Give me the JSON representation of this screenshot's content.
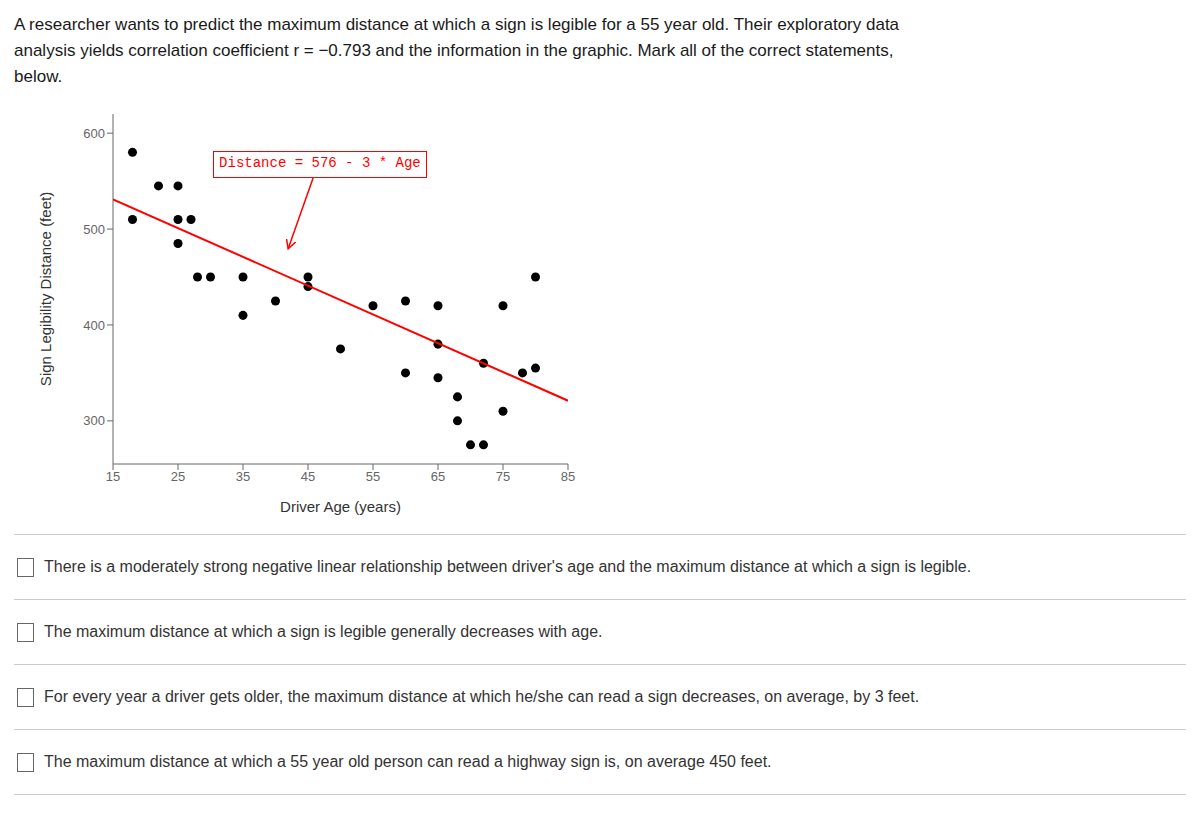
{
  "chart_data": {
    "type": "scatter",
    "title": [
      "A researcher wants to predict the maximum distance at which a sign is legible for a 55 year old.  Their exploratory data",
      "analysis yields correlation coefficient r = −0.793 and the information in the graphic.  Mark all of the correct statements,",
      "below."
    ],
    "x_label": "Driver Age (years)",
    "y_label": "Sign Legibility Distance (feet)",
    "series": [
      {
        "type": "scatter",
        "color": "#000000",
        "x": [
          18,
          18,
          22,
          25,
          25,
          25,
          27,
          28,
          30,
          35,
          35,
          40,
          45,
          45,
          50,
          55,
          60,
          60,
          65,
          65,
          65,
          68,
          68,
          70,
          72,
          72,
          75,
          75,
          78,
          80,
          80
        ],
        "values": [
          580,
          510,
          545,
          545,
          510,
          485,
          510,
          450,
          450,
          410,
          450,
          425,
          450,
          440,
          375,
          420,
          425,
          350,
          420,
          380,
          345,
          325,
          300,
          275,
          275,
          360,
          420,
          310,
          350,
          355,
          450
        ]
      },
      {
        "type": "line",
        "color": "#ff0000",
        "x": [
          15,
          85
        ],
        "values": [
          531,
          321
        ]
      }
    ],
    "xlim": [
      15,
      85
    ],
    "ylim": [
      255,
      620
    ],
    "xticks": [
      15,
      25,
      35,
      45,
      55,
      65,
      75,
      85
    ],
    "yticks": [
      300,
      400,
      500,
      600
    ],
    "grid": false,
    "annotations": [
      {
        "text": "Distance = 576 - 3 * Age",
        "color": "#ff0000"
      }
    ],
    "statements": [
      "There is a moderately strong negative linear relationship between driver's age and the maximum distance at which a sign is legible.",
      "The maximum distance at which a sign is legible generally decreases with age.",
      "For every year a driver gets older, the maximum distance at which he/she can read a sign decreases, on average, by 3 feet.",
      "The maximum distance at which a 55 year old person can read a highway sign is, on average 450 feet."
    ]
  }
}
